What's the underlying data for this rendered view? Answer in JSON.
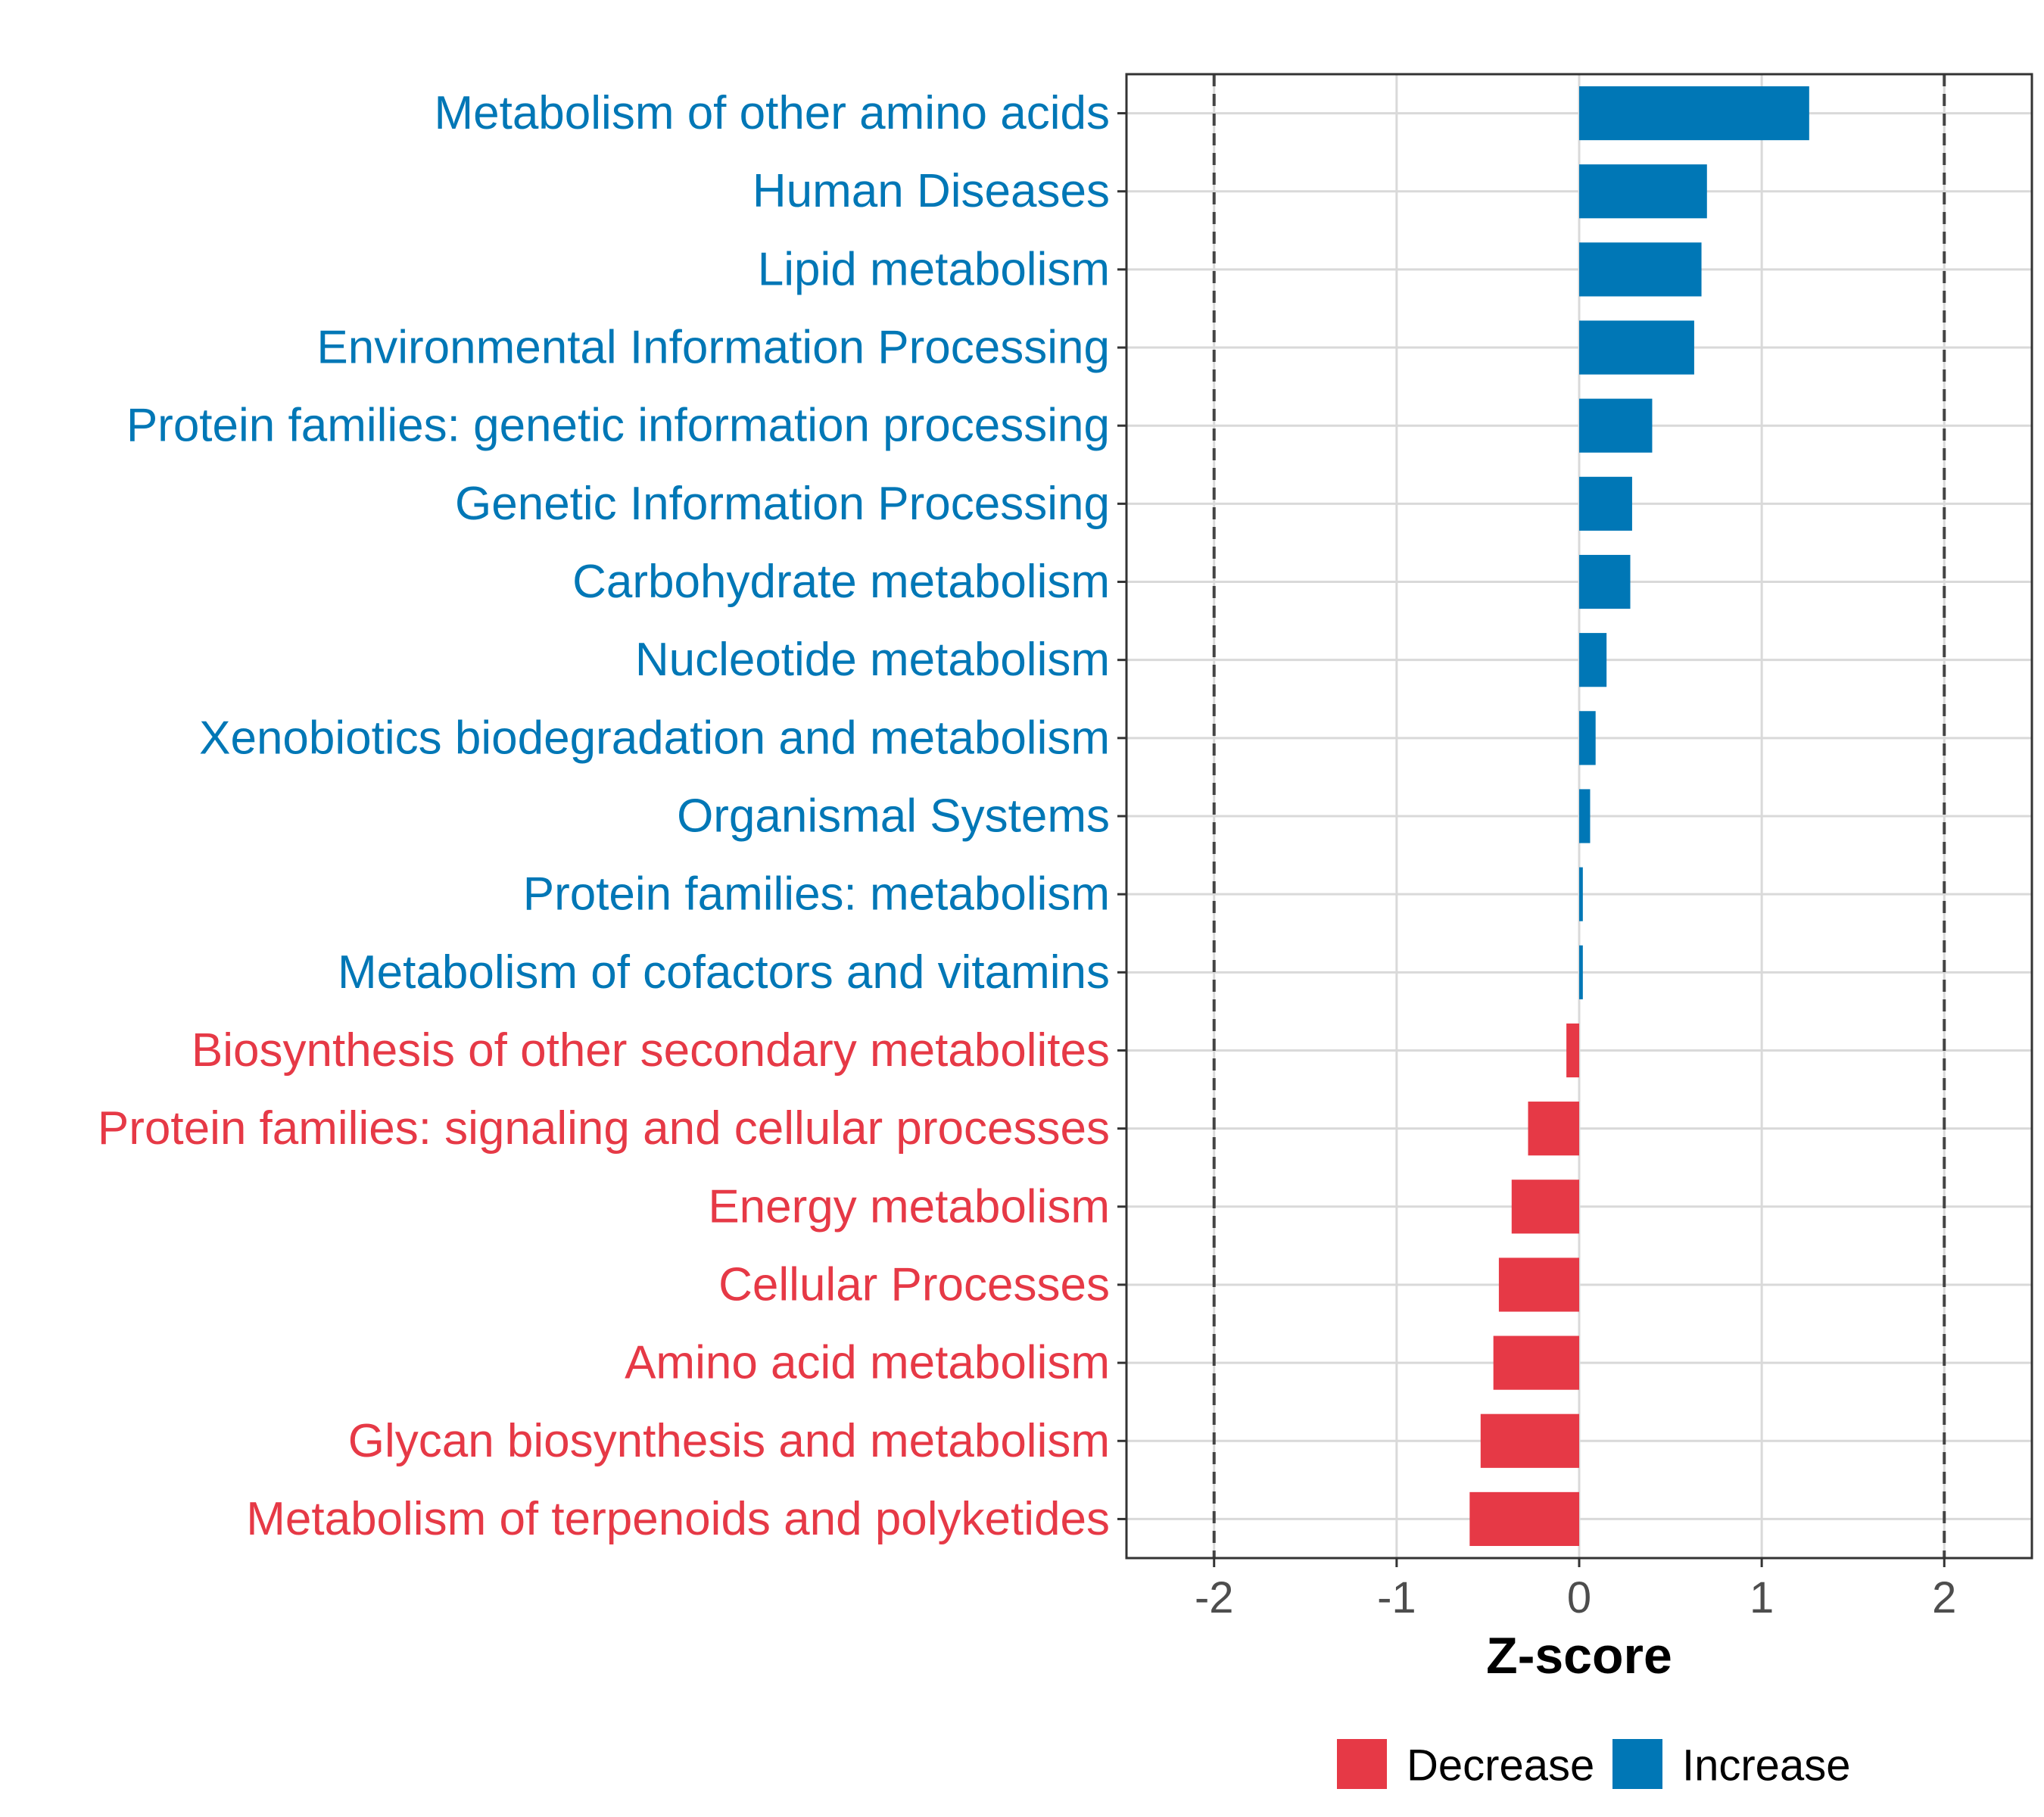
{
  "chart_data": {
    "type": "bar",
    "orientation": "horizontal",
    "title": "",
    "xlabel": "Z-score",
    "ylabel": "",
    "xlim": [
      -2.48,
      2.48
    ],
    "x_ticks": [
      -2,
      -1,
      0,
      1,
      2
    ],
    "x_tick_labels": [
      "-2",
      "-1",
      "0",
      "1",
      "2"
    ],
    "reference_lines": [
      -2,
      2
    ],
    "grid": true,
    "legend_position": "bottom",
    "colors": {
      "Decrease": "#e63946",
      "Increase": "#0077b6"
    },
    "legend": [
      {
        "label": "Decrease",
        "color": "#e63946"
      },
      {
        "label": "Increase",
        "color": "#0077b6"
      }
    ],
    "categories": [
      "Metabolism of other amino acids",
      "Human Diseases",
      "Lipid metabolism",
      "Environmental Information Processing",
      "Protein families: genetic information processing",
      "Genetic Information Processing",
      "Carbohydrate metabolism",
      "Nucleotide metabolism",
      "Xenobiotics biodegradation and metabolism",
      "Organismal Systems",
      "Protein families: metabolism",
      "Metabolism of cofactors and vitamins",
      "Biosynthesis of other secondary metabolites",
      "Protein families: signaling and cellular processes",
      "Energy metabolism",
      "Cellular Processes",
      "Amino acid metabolism",
      "Glycan biosynthesis and metabolism",
      "Metabolism of terpenoids and polyketides"
    ],
    "values": [
      1.26,
      0.7,
      0.67,
      0.63,
      0.4,
      0.29,
      0.28,
      0.15,
      0.09,
      0.06,
      0.02,
      0.02,
      -0.07,
      -0.28,
      -0.37,
      -0.44,
      -0.47,
      -0.54,
      -0.6
    ],
    "groups": [
      "Increase",
      "Increase",
      "Increase",
      "Increase",
      "Increase",
      "Increase",
      "Increase",
      "Increase",
      "Increase",
      "Increase",
      "Increase",
      "Increase",
      "Decrease",
      "Decrease",
      "Decrease",
      "Decrease",
      "Decrease",
      "Decrease",
      "Decrease"
    ]
  }
}
